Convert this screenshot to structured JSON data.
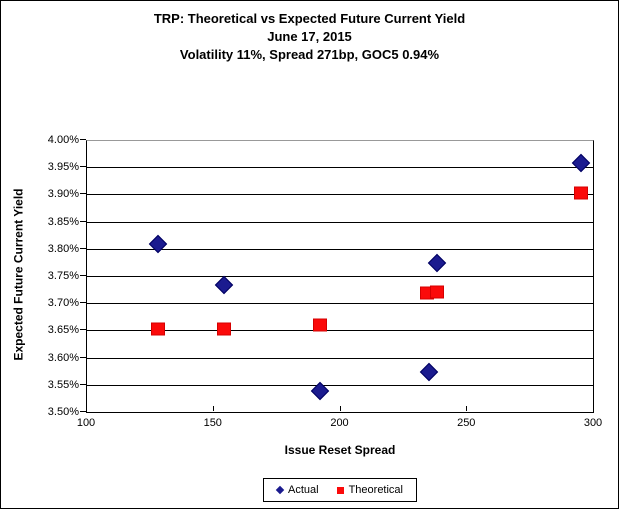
{
  "title": {
    "line1": "TRP: Theoretical vs Expected Future Current Yield",
    "line2": "June 17, 2015",
    "line3": "Volatility 11%, Spread 271bp, GOC5 0.94%"
  },
  "chart_data": {
    "type": "scatter",
    "title": "TRP: Theoretical vs Expected Future Current Yield",
    "subtitle_date": "June 17, 2015",
    "subtitle_params": "Volatility 11%, Spread 271bp, GOC5 0.94%",
    "xlabel": "Issue Reset Spread",
    "ylabel": "Expected Future Current Yield",
    "xlim": [
      100,
      300
    ],
    "ylim": [
      3.5,
      4.0
    ],
    "x_ticks": [
      100,
      150,
      200,
      250,
      300
    ],
    "y_ticks": [
      "3.50%",
      "3.55%",
      "3.60%",
      "3.65%",
      "3.70%",
      "3.75%",
      "3.80%",
      "3.85%",
      "3.90%",
      "3.95%",
      "4.00%"
    ],
    "grid": "horizontal",
    "legend_position": "bottom",
    "series": [
      {
        "name": "Actual",
        "marker": "diamond",
        "color": "#1b1b8f",
        "points": [
          [
            128,
            3.81
          ],
          [
            154,
            3.735
          ],
          [
            192,
            3.54
          ],
          [
            235,
            3.575
          ],
          [
            238,
            3.775
          ],
          [
            295,
            3.96
          ]
        ]
      },
      {
        "name": "Theoretical",
        "marker": "square",
        "color": "#fb0a0a",
        "points": [
          [
            128,
            3.655
          ],
          [
            154,
            3.655
          ],
          [
            192,
            3.662
          ],
          [
            234,
            3.72
          ],
          [
            238,
            3.722
          ],
          [
            295,
            3.905
          ]
        ]
      }
    ]
  }
}
